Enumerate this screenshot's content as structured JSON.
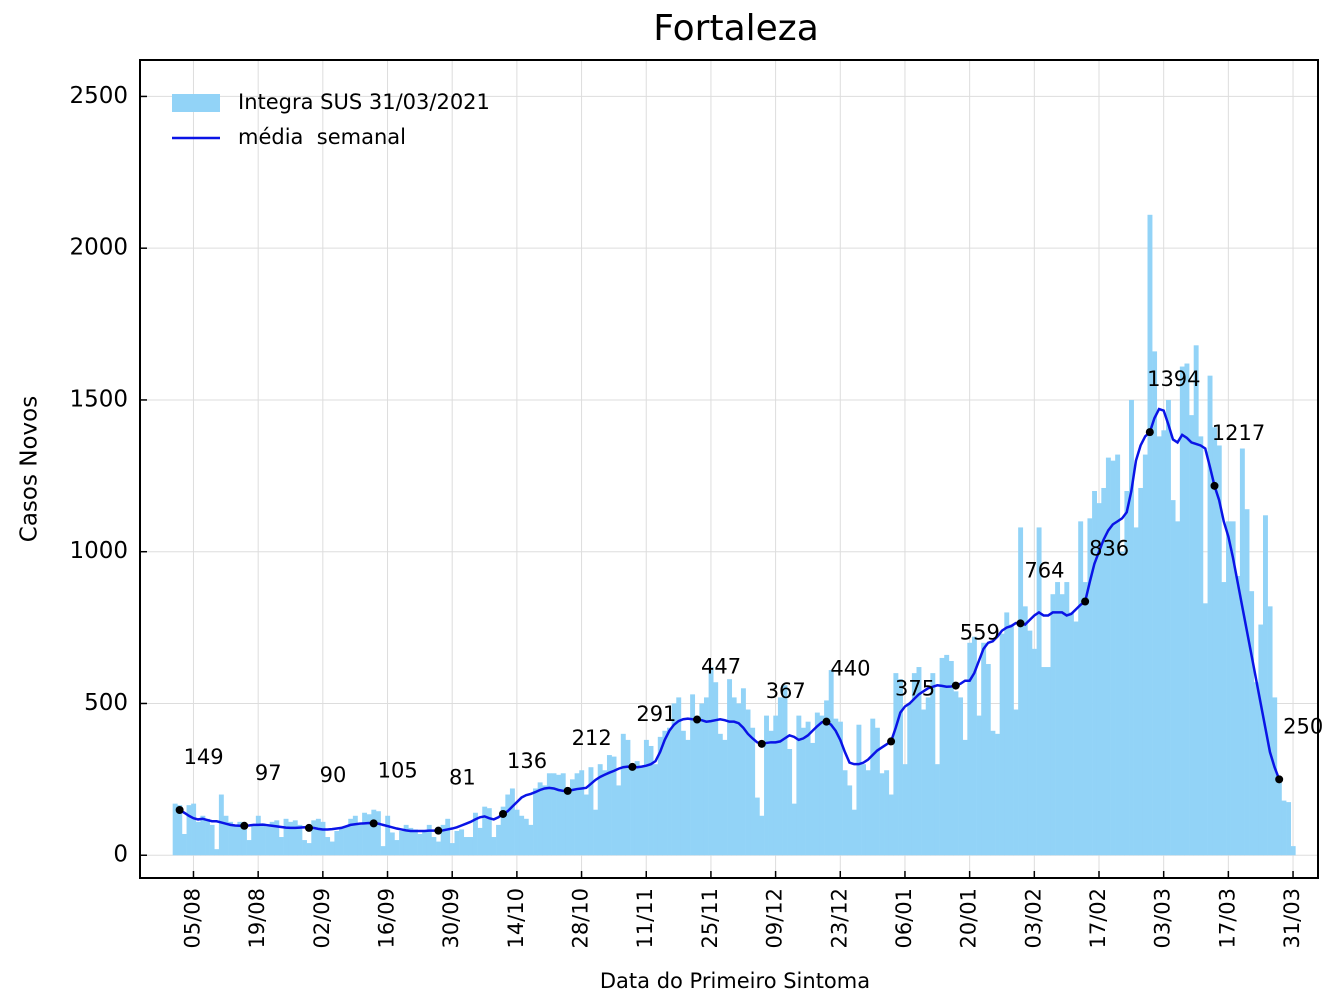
{
  "chart_data": {
    "type": "bar-line",
    "title": "Fortaleza",
    "x_label": "Data do Primeiro Sintoma",
    "y_label": "Casos Novos",
    "categories": [
      null,
      null,
      null,
      null,
      "05/08",
      null,
      null,
      null,
      null,
      null,
      null,
      null,
      null,
      null,
      null,
      null,
      null,
      null,
      "19/08",
      null,
      null,
      null,
      null,
      null,
      null,
      null,
      null,
      null,
      null,
      null,
      null,
      null,
      "02/09",
      null,
      null,
      null,
      null,
      null,
      null,
      null,
      null,
      null,
      null,
      null,
      null,
      null,
      "16/09",
      null,
      null,
      null,
      null,
      null,
      null,
      null,
      null,
      null,
      null,
      null,
      null,
      null,
      "30/09",
      null,
      null,
      null,
      null,
      null,
      null,
      null,
      null,
      null,
      null,
      null,
      null,
      null,
      "14/10",
      null,
      null,
      null,
      null,
      null,
      null,
      null,
      null,
      null,
      null,
      null,
      null,
      null,
      "28/10",
      null,
      null,
      null,
      null,
      null,
      null,
      null,
      null,
      null,
      null,
      null,
      null,
      null,
      "11/11",
      null,
      null,
      null,
      null,
      null,
      null,
      null,
      null,
      null,
      null,
      null,
      null,
      null,
      "25/11",
      null,
      null,
      null,
      null,
      null,
      null,
      null,
      null,
      null,
      null,
      null,
      null,
      null,
      "09/12",
      null,
      null,
      null,
      null,
      null,
      null,
      null,
      null,
      null,
      null,
      null,
      null,
      null,
      "23/12",
      null,
      null,
      null,
      null,
      null,
      null,
      null,
      null,
      null,
      null,
      null,
      null,
      null,
      "06/01",
      null,
      null,
      null,
      null,
      null,
      null,
      null,
      null,
      null,
      null,
      null,
      null,
      null,
      "20/01",
      null,
      null,
      null,
      null,
      null,
      null,
      null,
      null,
      null,
      null,
      null,
      null,
      null,
      "03/02",
      null,
      null,
      null,
      null,
      null,
      null,
      null,
      null,
      null,
      null,
      null,
      null,
      null,
      "17/02",
      null,
      null,
      null,
      null,
      null,
      null,
      null,
      null,
      null,
      null,
      null,
      null,
      null,
      "03/03",
      null,
      null,
      null,
      null,
      null,
      null,
      null,
      null,
      null,
      null,
      null,
      null,
      null,
      "17/03",
      null,
      null,
      null,
      null,
      null,
      null,
      null,
      null,
      null,
      null,
      null,
      null,
      null,
      "31/03"
    ],
    "series": [
      {
        "name": "Integra SUS 31/03/2021",
        "type": "bar",
        "color": "#92d3f7",
        "values": [
          170,
          165,
          70,
          165,
          170,
          110,
          130,
          120,
          100,
          20,
          200,
          130,
          110,
          100,
          110,
          100,
          50,
          100,
          130,
          105,
          95,
          110,
          115,
          60,
          120,
          110,
          115,
          100,
          50,
          40,
          115,
          120,
          110,
          60,
          45,
          80,
          90,
          95,
          120,
          130,
          100,
          140,
          135,
          150,
          145,
          30,
          130,
          75,
          50,
          80,
          100,
          90,
          85,
          70,
          80,
          100,
          60,
          45,
          100,
          120,
          40,
          80,
          85,
          60,
          60,
          140,
          90,
          160,
          155,
          60,
          100,
          160,
          200,
          220,
          150,
          130,
          120,
          100,
          220,
          240,
          230,
          270,
          270,
          265,
          270,
          220,
          250,
          270,
          280,
          200,
          290,
          150,
          300,
          280,
          330,
          325,
          230,
          400,
          380,
          290,
          310,
          290,
          380,
          360,
          300,
          390,
          410,
          420,
          500,
          520,
          410,
          380,
          530,
          440,
          500,
          520,
          620,
          570,
          400,
          380,
          580,
          520,
          500,
          550,
          480,
          420,
          190,
          130,
          460,
          410,
          460,
          520,
          560,
          350,
          170,
          460,
          420,
          440,
          370,
          470,
          460,
          510,
          610,
          450,
          440,
          280,
          230,
          150,
          430,
          300,
          280,
          450,
          420,
          270,
          280,
          200,
          600,
          580,
          300,
          500,
          600,
          620,
          480,
          520,
          600,
          300,
          650,
          660,
          640,
          540,
          520,
          380,
          700,
          720,
          460,
          700,
          630,
          410,
          400,
          730,
          800,
          760,
          480,
          1080,
          820,
          740,
          680,
          1080,
          620,
          620,
          860,
          900,
          860,
          900,
          800,
          770,
          1100,
          900,
          1110,
          1200,
          1160,
          1210,
          1310,
          1300,
          1320,
          1000,
          1200,
          1500,
          1080,
          1210,
          1320,
          2110,
          1660,
          1380,
          1400,
          1500,
          1170,
          1100,
          1610,
          1620,
          1450,
          1680,
          1380,
          830,
          1580,
          1410,
          1350,
          900,
          1100,
          1100,
          920,
          1340,
          1140,
          870,
          570,
          760,
          1120,
          820,
          520,
          250,
          180,
          175,
          30
        ]
      },
      {
        "name": "média  semanal",
        "type": "line",
        "color": "#0a14e6",
        "values": [
          null,
          149,
          140,
          130,
          122,
          118,
          120,
          116,
          112,
          112,
          108,
          104,
          100,
          98,
          97,
          97,
          98,
          100,
          100,
          101,
          99,
          97,
          95,
          93,
          91,
          90,
          90,
          91,
          92,
          90,
          90,
          87,
          85,
          85,
          86,
          88,
          90,
          95,
          100,
          102,
          104,
          105,
          106,
          105,
          104,
          100,
          96,
          92,
          88,
          85,
          82,
          80,
          80,
          80,
          80,
          81,
          81,
          81,
          82,
          85,
          88,
          92,
          98,
          104,
          110,
          118,
          125,
          128,
          122,
          118,
          125,
          136,
          145,
          160,
          175,
          190,
          198,
          202,
          208,
          215,
          220,
          222,
          220,
          215,
          212,
          212,
          215,
          218,
          220,
          222,
          235,
          248,
          258,
          265,
          272,
          278,
          285,
          290,
          292,
          291,
          290,
          292,
          295,
          300,
          310,
          340,
          380,
          410,
          430,
          442,
          448,
          450,
          448,
          447,
          445,
          440,
          442,
          445,
          448,
          445,
          440,
          440,
          435,
          420,
          400,
          385,
          372,
          367,
          370,
          372,
          372,
          375,
          385,
          395,
          390,
          380,
          385,
          395,
          410,
          425,
          438,
          440,
          430,
          410,
          380,
          340,
          305,
          300,
          300,
          305,
          315,
          330,
          345,
          355,
          365,
          375,
          420,
          470,
          490,
          500,
          515,
          530,
          540,
          550,
          555,
          560,
          558,
          555,
          556,
          559,
          565,
          575,
          575,
          600,
          640,
          680,
          700,
          705,
          720,
          740,
          750,
          755,
          765,
          764,
          760,
          775,
          790,
          800,
          790,
          790,
          800,
          800,
          800,
          790,
          795,
          810,
          825,
          836,
          900,
          960,
          1000,
          1040,
          1070,
          1090,
          1100,
          1110,
          1130,
          1200,
          1300,
          1350,
          1380,
          1394,
          1440,
          1470,
          1465,
          1420,
          1370,
          1360,
          1385,
          1375,
          1360,
          1355,
          1350,
          1340,
          1280,
          1217,
          1170,
          1100,
          1050,
          980,
          900,
          820,
          740,
          660,
          580,
          500,
          420,
          340,
          290,
          250,
          null,
          null,
          null
        ]
      }
    ],
    "ylim": [
      -75,
      2620
    ],
    "yticks": [
      0,
      500,
      1000,
      1500,
      2000,
      2500
    ],
    "grid": true,
    "legend": "upper left"
  }
}
